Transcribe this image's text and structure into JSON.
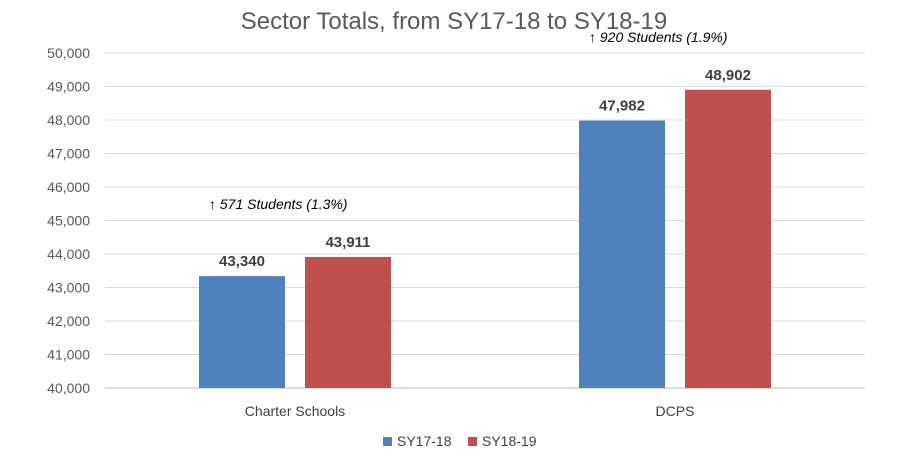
{
  "chart_data": {
    "type": "bar",
    "title": "Sector Totals, from SY17-18 to SY18-19",
    "categories": [
      "Charter Schools",
      "DCPS"
    ],
    "series": [
      {
        "name": "SY17-18",
        "values": [
          43340,
          47982
        ],
        "labels": [
          "43,340",
          "47,982"
        ],
        "color": "#4f81bd"
      },
      {
        "name": "SY18-19",
        "values": [
          43911,
          48902
        ],
        "labels": [
          "43,911",
          "48,902"
        ],
        "color": "#c0504d"
      }
    ],
    "ylim": [
      40000,
      50000
    ],
    "yticks": [
      "40,000",
      "41,000",
      "42,000",
      "43,000",
      "44,000",
      "45,000",
      "46,000",
      "47,000",
      "48,000",
      "49,000",
      "50,000"
    ],
    "annotations": [
      "↑ 571 Students (1.3%)",
      "↑ 920 Students (1.9%)"
    ],
    "grid": true,
    "legend_position": "bottom"
  }
}
